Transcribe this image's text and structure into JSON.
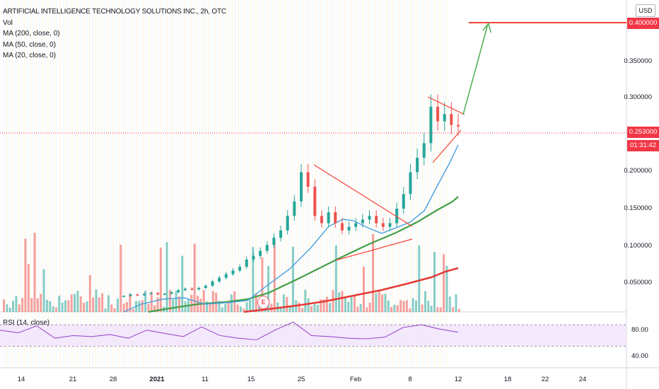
{
  "legend": {
    "title": "ARTIFICIAL INTELLIGENCE TECHNOLOGY SOLUTIONS INC., 2h, OTC",
    "vol": "Vol",
    "ma200": "MA (200, close, 0)",
    "ma50": "MA (50, close, 0)",
    "ma20": "MA (20, close, 0)"
  },
  "currency": "USD",
  "rsi_label": "RSI (14, close)",
  "price_axis": {
    "ticks": [
      "0.350000",
      "0.300000",
      "0.200000",
      "0.150000",
      "0.100000",
      "0.050000"
    ],
    "target_price": "0.400000",
    "last_price": "0.253000",
    "countdown": "01:31:42"
  },
  "rsi_axis": {
    "ticks": [
      "80.00",
      "40.00"
    ]
  },
  "time_axis": {
    "ticks": [
      "14",
      "21",
      "28",
      "2021",
      "11",
      "15",
      "25",
      "Feb",
      "8",
      "12",
      "18",
      "22",
      "24"
    ]
  },
  "earnings_marker": "E",
  "colors": {
    "up": "#26a69a",
    "down": "#ef5350",
    "ma200": "#e53935",
    "ma50": "#43a047",
    "ma20": "#4a9fe0",
    "rsi": "#9c4dcc",
    "trendline": "#f44336",
    "arrow": "#4caf50"
  },
  "chart_data": {
    "type": "candlestick",
    "title": "ARTIFICIAL INTELLIGENCE TECHNOLOGY SOLUTIONS INC., 2h, OTC",
    "currency": "USD",
    "ylim": [
      0.01,
      0.415
    ],
    "annotations": {
      "target_price": 0.4,
      "last_price": 0.253,
      "pennant_upper": [
        [
          0.3,
          0.272
        ]
      ],
      "pennant_lower": [
        [
          0.212,
          0.253
        ]
      ]
    },
    "candles_close_approx": [
      0.02,
      0.022,
      0.021,
      0.023,
      0.024,
      0.022,
      0.023,
      0.025,
      0.028,
      0.03,
      0.029,
      0.031,
      0.034,
      0.04,
      0.045,
      0.05,
      0.055,
      0.06,
      0.07,
      0.075,
      0.082,
      0.09,
      0.1,
      0.11,
      0.13,
      0.15,
      0.19,
      0.17,
      0.13,
      0.12,
      0.135,
      0.12,
      0.11,
      0.115,
      0.12,
      0.125,
      0.13,
      0.12,
      0.115,
      0.12,
      0.14,
      0.16,
      0.19,
      0.21,
      0.23,
      0.28,
      0.26,
      0.27,
      0.255,
      0.253
    ],
    "series": [
      {
        "name": "MA (200, close, 0)",
        "values_approx": [
          0.015,
          0.016,
          0.018,
          0.02,
          0.024,
          0.03,
          0.038,
          0.048,
          0.058,
          0.07
        ]
      },
      {
        "name": "MA (50, close, 0)",
        "values_approx": [
          0.016,
          0.02,
          0.025,
          0.03,
          0.04,
          0.07,
          0.095,
          0.11,
          0.13,
          0.165
        ]
      },
      {
        "name": "MA (20, close, 0)",
        "values_approx": [
          0.02,
          0.035,
          0.028,
          0.025,
          0.05,
          0.12,
          0.11,
          0.125,
          0.16,
          0.235
        ]
      },
      {
        "name": "RSI (14, close)",
        "values_approx": [
          70,
          65,
          78,
          55,
          60,
          58,
          62,
          55,
          70,
          64,
          58,
          76,
          60,
          55,
          52,
          70,
          85,
          60,
          58,
          55,
          54,
          57,
          75,
          80,
          72,
          66
        ]
      }
    ],
    "rsi_levels": [
      80,
      40
    ]
  }
}
